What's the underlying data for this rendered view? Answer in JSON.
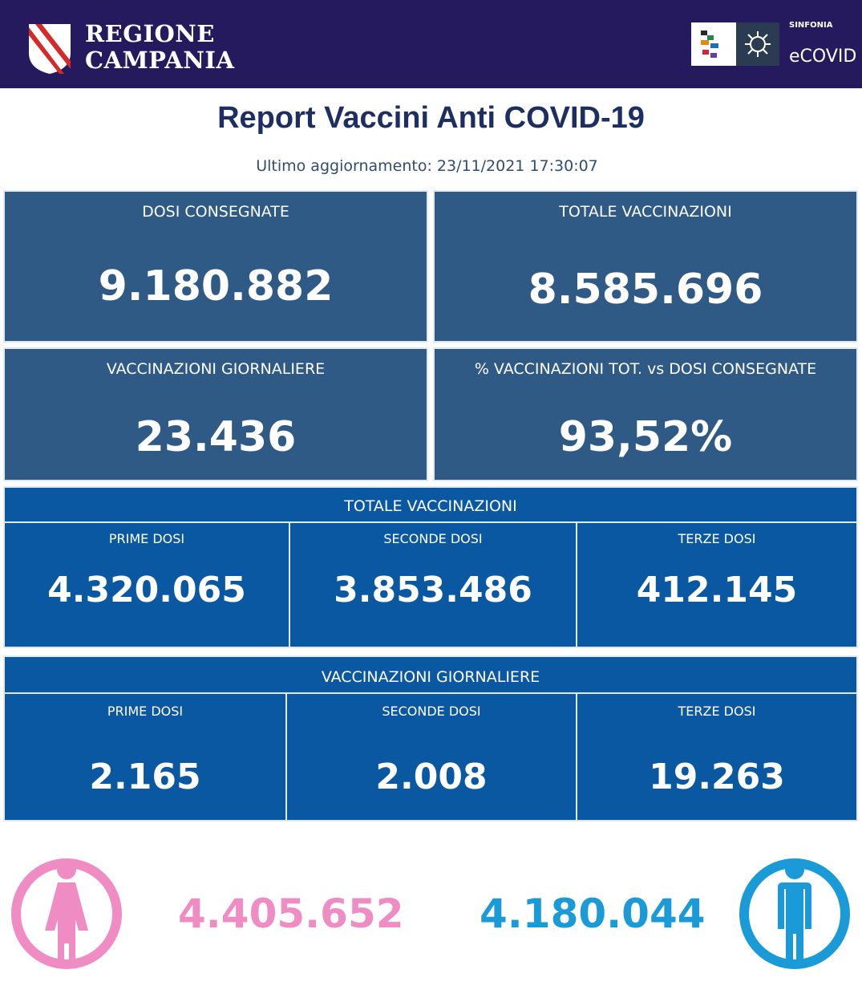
{
  "header": {
    "region_line1": "REGIONE",
    "region_line2": "CAMPANIA",
    "sinfonia": "SINFONIA",
    "ecovid": "eCOVID"
  },
  "report": {
    "title": "Report Vaccini Anti COVID-19",
    "updated": "Ultimo aggiornamento: 23/11/2021  17:30:07"
  },
  "kpis": [
    {
      "label": "DOSI  CONSEGNATE",
      "value": "9.180.882"
    },
    {
      "label": "TOTALE VACCINAZIONI",
      "value": "8.585.696"
    },
    {
      "label": "VACCINAZIONI GIORNALIERE",
      "value": "23.436"
    },
    {
      "label": "% VACCINAZIONI TOT. vs DOSI CONSEGNATE",
      "value": "93,52%"
    }
  ],
  "totale": {
    "title": "TOTALE VACCINAZIONI",
    "cells": [
      {
        "label": "PRIME DOSI",
        "value": "4.320.065"
      },
      {
        "label": "SECONDE DOSI",
        "value": "3.853.486"
      },
      {
        "label": "TERZE DOSI",
        "value": "412.145"
      }
    ]
  },
  "giornaliere": {
    "title": "VACCINAZIONI GIORNALIERE",
    "cells": [
      {
        "label": "PRIME DOSI",
        "value": "2.165"
      },
      {
        "label": "SECONDE DOSI",
        "value": "2.008"
      },
      {
        "label": "TERZE DOSI",
        "value": "19.263"
      }
    ]
  },
  "gender": {
    "female": {
      "value": "4.405.652",
      "color": "#f08cc4",
      "icon": "female-person-icon"
    },
    "male": {
      "value": "4.180.044",
      "color": "#1a9ad6",
      "icon": "male-person-icon"
    }
  },
  "colors": {
    "header_bg": "#251a5e",
    "title": "#1d2f62",
    "kpi_card": "#2f5a86",
    "dose_panel": "#0b58a2"
  }
}
